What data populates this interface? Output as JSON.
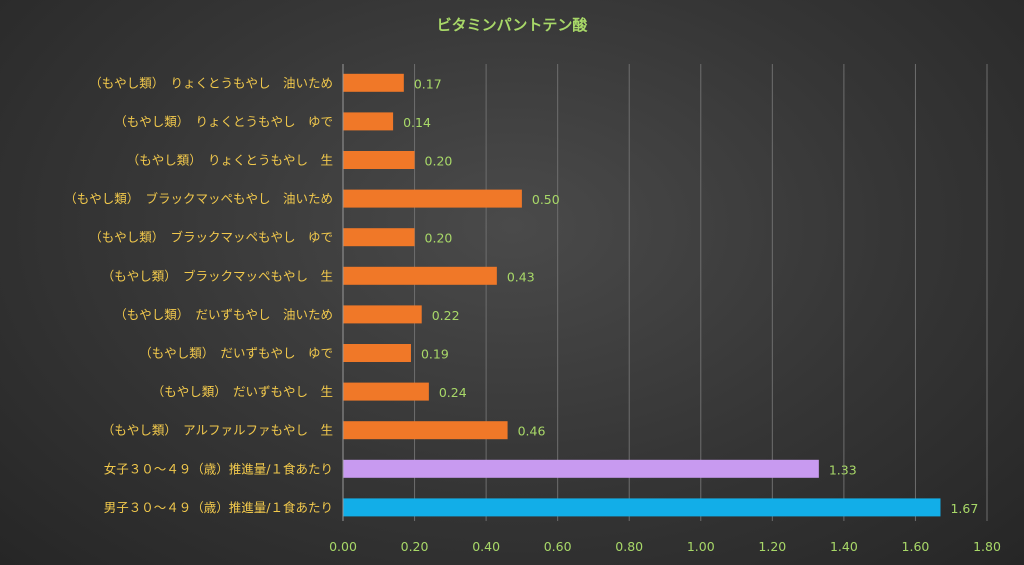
{
  "chart_data": {
    "type": "bar",
    "orientation": "horizontal",
    "title": "ビタミンパントテン酸",
    "xlim": [
      0,
      1.8
    ],
    "ticks": [
      0.0,
      0.2,
      0.4,
      0.6,
      0.8,
      1.0,
      1.2,
      1.4,
      1.6,
      1.8
    ],
    "tick_labels": [
      "0.00",
      "0.20",
      "0.40",
      "0.60",
      "0.80",
      "1.00",
      "1.20",
      "1.40",
      "1.60",
      "1.80"
    ],
    "grid": true,
    "legend": "none",
    "categories": [
      "（もやし類）　りょくとうもやし　油いため",
      "（もやし類）　りょくとうもやし　ゆで",
      "（もやし類）　りょくとうもやし　生",
      "（もやし類）　ブラックマッペもやし　油いため",
      "（もやし類）　ブラックマッペもやし　ゆで",
      "（もやし類）　ブラックマッペもやし　生",
      "（もやし類）　だいずもやし　油いため",
      "（もやし類）　だいずもやし　ゆで",
      "（もやし類）　だいずもやし　生",
      "（もやし類）　アルファルファもやし　生",
      "女子３０～４９（歳）推進量/１食あたり",
      "男子３０～４９（歳）推進量/１食あたり"
    ],
    "values": [
      0.17,
      0.14,
      0.2,
      0.5,
      0.2,
      0.43,
      0.22,
      0.19,
      0.24,
      0.46,
      1.33,
      1.67
    ],
    "value_labels": [
      "0.17",
      "0.14",
      "0.20",
      "0.50",
      "0.20",
      "0.43",
      "0.22",
      "0.19",
      "0.24",
      "0.46",
      "1.33",
      "1.67"
    ],
    "colors": [
      "#f07828",
      "#f07828",
      "#f07828",
      "#f07828",
      "#f07828",
      "#f07828",
      "#f07828",
      "#f07828",
      "#f07828",
      "#f07828",
      "#c89af0",
      "#12aee8"
    ]
  }
}
